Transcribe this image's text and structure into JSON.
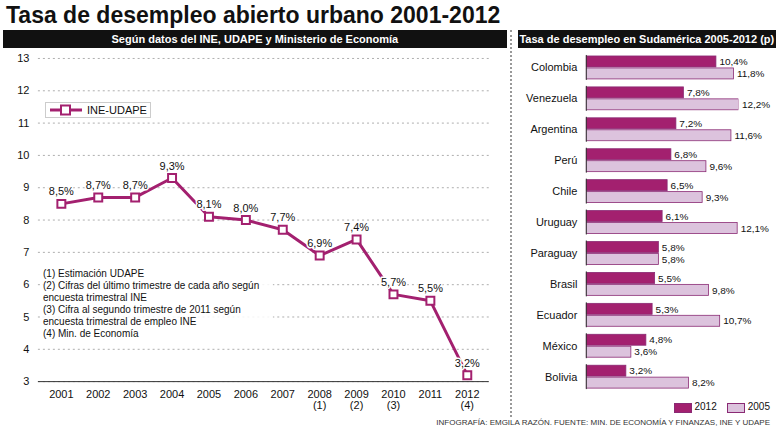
{
  "chart_data": [
    {
      "type": "line",
      "title": "Tasa de desempleo abierto urbano 2001-2012",
      "subtitle": "Según datos del INE, UDAPE y Ministerio de Economía",
      "categories": [
        "2001",
        "2002",
        "2003",
        "2004",
        "2005",
        "2006",
        "2007",
        "2008 (1)",
        "2009 (2)",
        "2010 (3)",
        "2011",
        "2012 (4)"
      ],
      "series": [
        {
          "name": "INE-UDAPE",
          "color": "#a3206f",
          "marker": "square",
          "values": [
            8.5,
            8.7,
            8.7,
            9.3,
            8.1,
            8.0,
            7.7,
            6.9,
            7.4,
            5.7,
            5.5,
            3.2
          ],
          "value_labels": [
            "8,5%",
            "8,7%",
            "8,7%",
            "9,3%",
            "8,1%",
            "8,0%",
            "7,7%",
            "6,9%",
            "7,4%",
            "5,7%",
            "5,5%",
            "3,2%"
          ]
        }
      ],
      "ylim": [
        3,
        13
      ],
      "yticks": [
        3,
        4,
        5,
        6,
        7,
        8,
        9,
        10,
        11,
        12,
        13
      ],
      "grid": true,
      "legend": "top-left",
      "data_labels": true,
      "notes": [
        "(1) Estimación UDAPE",
        "(2) Cifras del último trimestre de cada año según encuesta trimestral INE",
        "(3) Cifra al segundo trimestre de 2011 según encuesta trimestral de empleo INE",
        "(4) Min. de Economía"
      ],
      "source": "INFOGRAFÍA: EMGILA RAZÓN. FUENTE: MIN. DE ECONOMÍA Y FINANZAS, INE Y UDAPE"
    },
    {
      "type": "bar",
      "orientation": "horizontal",
      "title": "Tasa de desempleo en Sudamérica 2005-2012 (p)",
      "categories": [
        "Colombia",
        "Venezuela",
        "Argentina",
        "Perú",
        "Chile",
        "Uruguay",
        "Paraguay",
        "Brasil",
        "Ecuador",
        "México",
        "Bolivia"
      ],
      "series": [
        {
          "name": "2012",
          "color": "#a3206f",
          "values": [
            10.4,
            7.8,
            7.2,
            6.8,
            6.5,
            6.1,
            5.8,
            5.5,
            5.3,
            4.8,
            3.2
          ],
          "value_labels": [
            "10,4%",
            "7,8%",
            "7,2%",
            "6,8%",
            "6,5%",
            "6,1%",
            "5,8%",
            "5,5%",
            "5,3%",
            "4,8%",
            "3,2%"
          ]
        },
        {
          "name": "2005",
          "color": "#dcc3dd",
          "values": [
            11.8,
            12.2,
            11.6,
            9.6,
            9.3,
            12.1,
            5.8,
            9.8,
            10.7,
            3.6,
            8.2
          ],
          "value_labels": [
            "11,8%",
            "12,2%",
            "11,6%",
            "9,6%",
            "9,3%",
            "12,1%",
            "5,8%",
            "9,8%",
            "10,7%",
            "3,6%",
            "8,2%"
          ]
        }
      ],
      "data_labels": true,
      "legend": "bottom",
      "tick_labels": "y"
    }
  ]
}
